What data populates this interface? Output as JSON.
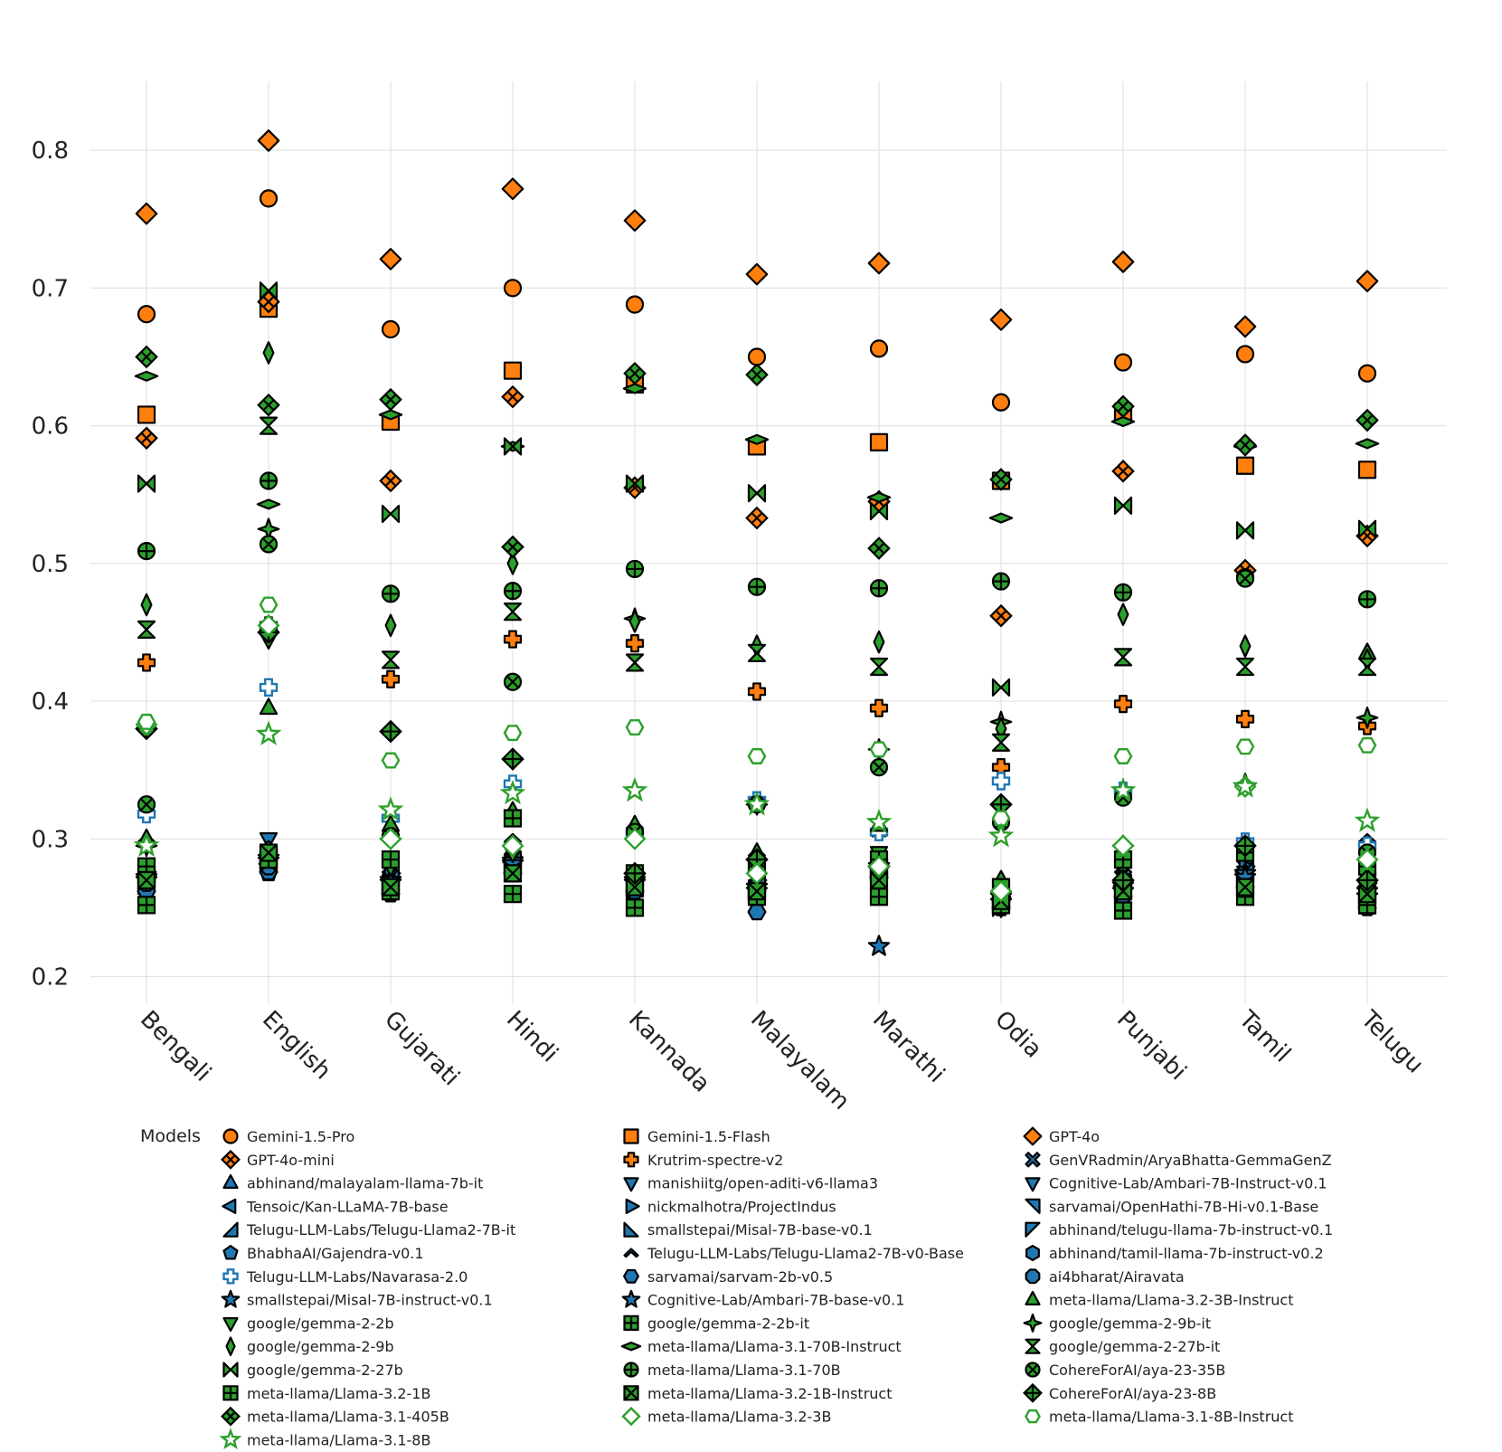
{
  "chart_data": {
    "type": "scatter",
    "title": "",
    "xlabel": "",
    "ylabel": "",
    "ylim": [
      0.18,
      0.85
    ],
    "yticks": [
      0.2,
      0.3,
      0.4,
      0.5,
      0.6,
      0.7,
      0.8
    ],
    "grid": true,
    "legend_title": "Models",
    "legend_position": "bottom",
    "categories": [
      "Bengali",
      "English",
      "Gujarati",
      "Hindi",
      "Kannada",
      "Malayalam",
      "Marathi",
      "Odia",
      "Punjabi",
      "Tamil",
      "Telugu"
    ],
    "series": [
      {
        "name": "Gemini-1.5-Pro",
        "symbol": "circle",
        "color": "#ff7f0e",
        "values": [
          0.681,
          0.765,
          0.67,
          0.7,
          0.688,
          0.65,
          0.656,
          0.617,
          0.646,
          0.652,
          0.638
        ]
      },
      {
        "name": "Gemini-1.5-Flash",
        "symbol": "square",
        "color": "#ff7f0e",
        "values": [
          0.608,
          0.685,
          0.603,
          0.64,
          0.63,
          0.585,
          0.588,
          0.56,
          0.61,
          0.571,
          0.568
        ]
      },
      {
        "name": "GPT-4o",
        "symbol": "diamond",
        "color": "#ff7f0e",
        "values": [
          0.754,
          0.807,
          0.721,
          0.772,
          0.749,
          0.71,
          0.718,
          0.677,
          0.719,
          0.672,
          0.705
        ]
      },
      {
        "name": "GPT-4o-mini",
        "symbol": "diamond-x",
        "color": "#ff7f0e",
        "values": [
          0.591,
          0.69,
          0.56,
          0.621,
          0.555,
          0.533,
          0.545,
          0.462,
          0.567,
          0.495,
          0.52
        ]
      },
      {
        "name": "Krutrim-spectre-v2",
        "symbol": "cross",
        "color": "#ff7f0e",
        "values": [
          0.428,
          0.455,
          0.416,
          0.445,
          0.442,
          0.407,
          0.395,
          0.352,
          0.398,
          0.387,
          0.382
        ]
      },
      {
        "name": "GenVRadmin/AryaBhatta-GemmaGenZ",
        "symbol": "x",
        "color": "#1f77b4",
        "values": [
          0.28,
          0.29,
          0.272,
          0.285,
          0.27,
          0.265,
          0.28,
          0.258,
          0.272,
          0.28,
          0.272
        ]
      },
      {
        "name": "abhinand/malayalam-llama-7b-it",
        "symbol": "triangle-up",
        "color": "#1f77b4",
        "values": [
          0.27,
          0.285,
          0.268,
          0.282,
          0.268,
          0.268,
          0.278,
          0.255,
          0.268,
          0.27,
          0.25
        ]
      },
      {
        "name": "manishiitg/open-aditi-v6-llama3",
        "symbol": "triangle-down",
        "color": "#1f77b4",
        "values": [
          0.268,
          0.3,
          0.262,
          0.28,
          0.262,
          0.258,
          0.276,
          0.25,
          0.26,
          0.268,
          0.255
        ]
      },
      {
        "name": "Cognitive-Lab/Ambari-7B-Instruct-v0.1",
        "symbol": "triangle-down",
        "color": "#1f77b4",
        "values": [
          0.265,
          0.288,
          0.265,
          0.278,
          0.265,
          0.262,
          0.28,
          0.252,
          0.262,
          0.272,
          0.262
        ]
      },
      {
        "name": "Tensoic/Kan-LLaMA-7B-base",
        "symbol": "triangle-left",
        "color": "#1f77b4",
        "values": [
          0.272,
          0.282,
          0.27,
          0.283,
          0.272,
          0.265,
          0.279,
          0.256,
          0.266,
          0.276,
          0.265
        ]
      },
      {
        "name": "nickmalhotra/ProjectIndus",
        "symbol": "triangle-right",
        "color": "#1f77b4",
        "values": [
          0.276,
          0.286,
          0.275,
          0.287,
          0.274,
          0.27,
          0.281,
          0.258,
          0.27,
          0.28,
          0.268
        ]
      },
      {
        "name": "sarvamai/OpenHathi-7B-Hi-v0.1-Base",
        "symbol": "triangle-ne",
        "color": "#1f77b4",
        "values": [
          0.27,
          0.284,
          0.268,
          0.282,
          0.266,
          0.264,
          0.278,
          0.254,
          0.264,
          0.274,
          0.258
        ]
      },
      {
        "name": "Telugu-LLM-Labs/Telugu-Llama2-7B-it",
        "symbol": "triangle-se",
        "color": "#1f77b4",
        "values": [
          0.274,
          0.287,
          0.272,
          0.285,
          0.27,
          0.267,
          0.28,
          0.255,
          0.268,
          0.277,
          0.27
        ]
      },
      {
        "name": "smallstepai/Misal-7B-base-v0.1",
        "symbol": "triangle-sw",
        "color": "#1f77b4",
        "values": [
          0.268,
          0.283,
          0.266,
          0.28,
          0.264,
          0.262,
          0.276,
          0.252,
          0.262,
          0.272,
          0.256
        ]
      },
      {
        "name": "abhinand/telugu-llama-7b-instruct-v0.1",
        "symbol": "triangle-nw",
        "color": "#1f77b4",
        "values": [
          0.266,
          0.281,
          0.264,
          0.279,
          0.262,
          0.26,
          0.275,
          0.25,
          0.26,
          0.27,
          0.254
        ]
      },
      {
        "name": "BhabhaAI/Gajendra-v0.1",
        "symbol": "pentagon",
        "color": "#1f77b4",
        "values": [
          0.265,
          0.275,
          0.262,
          0.276,
          0.264,
          0.258,
          0.275,
          0.252,
          0.258,
          0.27,
          0.252
        ]
      },
      {
        "name": "Telugu-LLM-Labs/Telugu-Llama2-7B-v0-Base",
        "symbol": "hat",
        "color": "#1f77b4",
        "values": [
          0.3,
          0.295,
          0.305,
          0.3,
          0.31,
          0.29,
          0.305,
          0.27,
          0.29,
          0.295,
          0.3
        ]
      },
      {
        "name": "abhinand/tamil-llama-7b-instruct-v0.2",
        "symbol": "hexagon",
        "color": "#1f77b4",
        "values": [
          0.268,
          0.282,
          0.266,
          0.28,
          0.266,
          0.262,
          0.276,
          0.254,
          0.264,
          0.272,
          0.256
        ]
      },
      {
        "name": "Telugu-LLM-Labs/Navarasa-2.0",
        "symbol": "cross-open",
        "color": "#1f77b4",
        "values": [
          0.318,
          0.41,
          0.315,
          0.34,
          0.305,
          0.328,
          0.305,
          0.342,
          0.335,
          0.298,
          0.295
        ]
      },
      {
        "name": "sarvamai/sarvam-2b-v0.5",
        "symbol": "hexagon2",
        "color": "#1f77b4",
        "values": [
          0.262,
          0.276,
          0.26,
          0.275,
          0.262,
          0.247,
          0.272,
          0.25,
          0.258,
          0.265,
          0.25
        ]
      },
      {
        "name": "ai4bharat/Airavata",
        "symbol": "octagon",
        "color": "#1f77b4",
        "values": [
          0.268,
          0.28,
          0.268,
          0.282,
          0.268,
          0.262,
          0.278,
          0.256,
          0.264,
          0.27,
          0.258
        ]
      },
      {
        "name": "smallstepai/Misal-7B-instruct-v0.1",
        "symbol": "star",
        "color": "#1f77b4",
        "values": [
          0.272,
          0.286,
          0.27,
          0.284,
          0.27,
          0.265,
          0.28,
          0.258,
          0.266,
          0.275,
          0.262
        ]
      },
      {
        "name": "Cognitive-Lab/Ambari-7B-base-v0.1",
        "symbol": "star",
        "color": "#1f77b4",
        "values": [
          0.27,
          0.284,
          0.268,
          0.282,
          0.268,
          0.262,
          0.222,
          0.254,
          0.262,
          0.272,
          0.258
        ]
      },
      {
        "name": "meta-llama/Llama-3.2-3B-Instruct",
        "symbol": "triangle-up",
        "color": "#2ca02c",
        "values": [
          0.3,
          0.395,
          0.31,
          0.32,
          0.31,
          0.29,
          0.31,
          0.27,
          0.29,
          0.295,
          0.435
        ]
      },
      {
        "name": "google/gemma-2-2b",
        "symbol": "triangle-down",
        "color": "#2ca02c",
        "values": [
          0.27,
          0.445,
          0.28,
          0.29,
          0.27,
          0.28,
          0.29,
          0.26,
          0.28,
          0.29,
          0.28
        ]
      },
      {
        "name": "google/gemma-2-2b-it",
        "symbol": "square-cross",
        "color": "#2ca02c",
        "values": [
          0.28,
          0.285,
          0.285,
          0.315,
          0.275,
          0.28,
          0.285,
          0.265,
          0.285,
          0.29,
          0.28
        ]
      },
      {
        "name": "google/gemma-2-9b-it",
        "symbol": "star-diamond",
        "color": "#2ca02c",
        "values": [
          0.295,
          0.525,
          0.3,
          0.512,
          0.46,
          0.325,
          0.365,
          0.385,
          0.295,
          0.34,
          0.388
        ]
      },
      {
        "name": "google/gemma-2-9b",
        "symbol": "diamond-tall",
        "color": "#2ca02c",
        "values": [
          0.47,
          0.653,
          0.455,
          0.5,
          0.458,
          0.44,
          0.443,
          0.38,
          0.463,
          0.44,
          0.43
        ]
      },
      {
        "name": "meta-llama/Llama-3.1-70B-Instruct",
        "symbol": "diamond-wide",
        "color": "#2ca02c",
        "values": [
          0.636,
          0.543,
          0.608,
          0.585,
          0.627,
          0.59,
          0.548,
          0.533,
          0.603,
          0.585,
          0.587
        ]
      },
      {
        "name": "google/gemma-2-27b-it",
        "symbol": "hourglass",
        "color": "#2ca02c",
        "values": [
          0.452,
          0.6,
          0.43,
          0.465,
          0.428,
          0.435,
          0.425,
          0.37,
          0.432,
          0.425,
          0.425
        ]
      },
      {
        "name": "google/gemma-2-27b",
        "symbol": "bowtie",
        "color": "#2ca02c",
        "values": [
          0.558,
          0.698,
          0.536,
          0.585,
          0.558,
          0.551,
          0.538,
          0.41,
          0.542,
          0.524,
          0.525
        ]
      },
      {
        "name": "meta-llama/Llama-3.1-70B",
        "symbol": "circle-cross",
        "color": "#2ca02c",
        "values": [
          0.509,
          0.56,
          0.478,
          0.48,
          0.496,
          0.483,
          0.482,
          0.487,
          0.479,
          0.49,
          0.474
        ]
      },
      {
        "name": "CohereForAI/aya-23-35B",
        "symbol": "circle-x",
        "color": "#2ca02c",
        "values": [
          0.325,
          0.514,
          0.302,
          0.414,
          0.305,
          0.325,
          0.352,
          0.312,
          0.33,
          0.489,
          0.29
        ]
      },
      {
        "name": "meta-llama/Llama-3.2-1B",
        "symbol": "square-cross",
        "color": "#2ca02c",
        "values": [
          0.252,
          0.285,
          0.262,
          0.26,
          0.25,
          0.258,
          0.258,
          0.252,
          0.248,
          0.258,
          0.252
        ]
      },
      {
        "name": "meta-llama/Llama-3.2-1B-Instruct",
        "symbol": "square-x",
        "color": "#2ca02c",
        "values": [
          0.27,
          0.29,
          0.265,
          0.275,
          0.265,
          0.262,
          0.27,
          0.255,
          0.262,
          0.265,
          0.26
        ]
      },
      {
        "name": "CohereForAI/aya-23-8B",
        "symbol": "diamond-cross",
        "color": "#2ca02c",
        "values": [
          0.38,
          0.45,
          0.378,
          0.358,
          0.275,
          0.285,
          0.28,
          0.325,
          0.27,
          0.295,
          0.27
        ]
      },
      {
        "name": "meta-llama/Llama-3.1-405B",
        "symbol": "diamond-x",
        "color": "#2ca02c",
        "values": [
          0.65,
          0.615,
          0.619,
          0.512,
          0.638,
          0.637,
          0.511,
          0.561,
          0.614,
          0.586,
          0.604
        ]
      },
      {
        "name": "meta-llama/Llama-3.2-3B",
        "symbol": "diamond-open",
        "color": "#2ca02c",
        "values": [
          0.383,
          0.455,
          0.3,
          0.295,
          0.3,
          0.275,
          0.28,
          0.262,
          0.295,
          0.338,
          0.285
        ]
      },
      {
        "name": "meta-llama/Llama-3.1-8B-Instruct",
        "symbol": "hexagon-open",
        "color": "#2ca02c",
        "values": [
          0.385,
          0.47,
          0.357,
          0.377,
          0.381,
          0.36,
          0.365,
          0.315,
          0.36,
          0.367,
          0.368
        ]
      },
      {
        "name": "meta-llama/Llama-3.1-8B",
        "symbol": "star-open",
        "color": "#2ca02c",
        "values": [
          0.295,
          0.376,
          0.321,
          0.333,
          0.335,
          0.325,
          0.312,
          0.302,
          0.335,
          0.338,
          0.313
        ]
      }
    ]
  }
}
